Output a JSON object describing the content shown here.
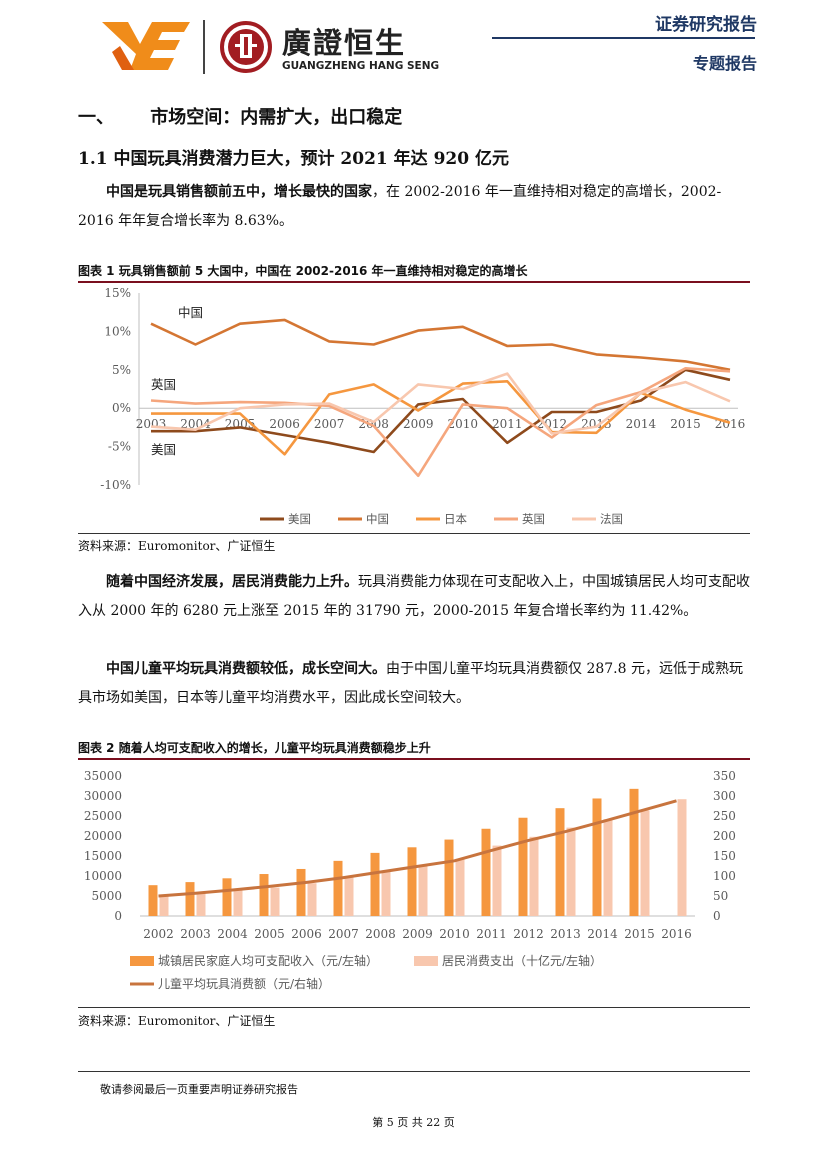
{
  "header": {
    "logo_cn": "廣證恒生",
    "logo_en": "GUANGZHENG HANG SENG",
    "report_type": "证券研究报告",
    "report_sub": "专题报告"
  },
  "section": {
    "number": "一、",
    "title": "市场空间：内需扩大，出口稳定",
    "subtitle": "1.1 中国玩具消费潜力巨大，预计 2021 年达 920 亿元"
  },
  "paragraphs": [
    {
      "bold": "中国是玩具销售额前五中，增长最快的国家",
      "text": "，在 2002-2016 年一直维持相对稳定的高增长，2002-2016 年年复合增长率为 8.63%。"
    },
    {
      "bold": "随着中国经济发展，居民消费能力上升。",
      "text": "玩具消费能力体现在可支配收入上，中国城镇居民人均可支配收入从 2000 年的 6280 元上涨至 2015 年的 31790 元，2000-2015 年复合增长率约为 11.42%。"
    },
    {
      "bold": "中国儿童平均玩具消费额较低，成长空间大。",
      "text": "由于中国儿童平均玩具消费额仅 287.8 元，远低于成熟玩具市场如美国，日本等儿童平均消费水平，因此成长空间较大。"
    }
  ],
  "figure1": {
    "title": "图表 1 玩具销售额前 5 大国中，中国在 2002-2016 年一直维持相对稳定的高增长",
    "source": "资料来源：Euromonitor、广证恒生"
  },
  "figure2": {
    "title": "图表 2 随着人均可支配收入的增长，儿童平均玩具消费额稳步上升",
    "source": "资料来源：Euromonitor、广证恒生"
  },
  "footer": {
    "note": "敬请参阅最后一页重要声明证券研究报告",
    "page": "第 5 页 共 22 页"
  },
  "colors": {
    "navy": "#1f3864",
    "maroon": "#7a0f1e"
  },
  "chart_data": [
    {
      "type": "line",
      "title": "图表 1 玩具销售额前 5 大国中，中国在 2002-2016 年一直维持相对稳定的高增长",
      "x": [
        "2003",
        "2004",
        "2005",
        "2006",
        "2007",
        "2008",
        "2009",
        "2010",
        "2011",
        "2012",
        "2013",
        "2014",
        "2015",
        "2016"
      ],
      "ylim": [
        -10,
        15
      ],
      "yticks": [
        "15%",
        "10%",
        "5%",
        "0%",
        "-5%",
        "-10%"
      ],
      "annotations": [
        "中国",
        "英国",
        "美国"
      ],
      "legend_position": "bottom",
      "series": [
        {
          "name": "美国",
          "color": "#8e4a1c",
          "values": [
            -3,
            -3,
            -2.5,
            -3.5,
            -4.5,
            -5.7,
            0.5,
            1.2,
            -4.5,
            -0.5,
            -0.5,
            1,
            5,
            3.7
          ]
        },
        {
          "name": "中国",
          "color": "#d47633",
          "values": [
            11,
            8.3,
            11,
            11.5,
            8.7,
            8.3,
            10.1,
            10.6,
            8.1,
            8.3,
            7,
            6.6,
            6.1,
            5
          ]
        },
        {
          "name": "日本",
          "color": "#f5973f",
          "values": [
            -0.7,
            -0.7,
            -0.7,
            -6,
            1.8,
            3.1,
            -0.3,
            3.2,
            3.5,
            -3.1,
            -3.2,
            2,
            -0.2,
            -1.9
          ]
        },
        {
          "name": "英国",
          "color": "#f5a67d",
          "values": [
            1,
            0.6,
            0.8,
            0.7,
            0.3,
            -2.3,
            -8.8,
            0.5,
            0,
            -3.8,
            0.4,
            2.1,
            5.2,
            4.8
          ]
        },
        {
          "name": "法国",
          "color": "#f8c7ae",
          "values": [
            -2.4,
            -2.8,
            0,
            0.5,
            0.6,
            -1.8,
            3.1,
            2.5,
            4.5,
            -3.3,
            -2.4,
            2,
            3.4,
            0.9
          ]
        }
      ]
    },
    {
      "type": "bar",
      "title": "图表 2 随着人均可支配收入的增长，儿童平均玩具消费额稳步上升",
      "categories": [
        "2002",
        "2003",
        "2004",
        "2005",
        "2006",
        "2007",
        "2008",
        "2009",
        "2010",
        "2011",
        "2012",
        "2013",
        "2014",
        "2015",
        "2016"
      ],
      "ylim_left": [
        0,
        35000
      ],
      "ylim_right": [
        0,
        350
      ],
      "yticks_left": [
        "35000",
        "30000",
        "25000",
        "20000",
        "15000",
        "10000",
        "5000",
        "0"
      ],
      "yticks_right": [
        "350",
        "300",
        "250",
        "200",
        "150",
        "100",
        "50",
        "0"
      ],
      "legend_position": "bottom",
      "series": [
        {
          "name": "城镇居民家庭人均可支配收入（元/左轴）",
          "type": "bar",
          "axis": "left",
          "color": "#f5973f",
          "values": [
            7703,
            8472,
            9422,
            10493,
            11760,
            13786,
            15781,
            17175,
            19109,
            21810,
            24565,
            26955,
            29381,
            31790,
            null
          ]
        },
        {
          "name": "居民消费支出（十亿元/左轴）",
          "type": "bar",
          "axis": "left",
          "color": "#f8c7ae",
          "values": [
            5300,
            5800,
            6500,
            7100,
            8200,
            9600,
            11400,
            12600,
            14300,
            17600,
            19800,
            22100,
            24200,
            26400,
            29200
          ]
        },
        {
          "name": "儿童平均玩具消费额（元/右轴）",
          "type": "line",
          "axis": "right",
          "color": "#c8743e",
          "values": [
            50,
            57,
            65,
            74,
            84,
            96,
            110,
            124,
            138,
            164,
            189,
            211,
            236,
            262,
            288
          ]
        }
      ]
    }
  ]
}
